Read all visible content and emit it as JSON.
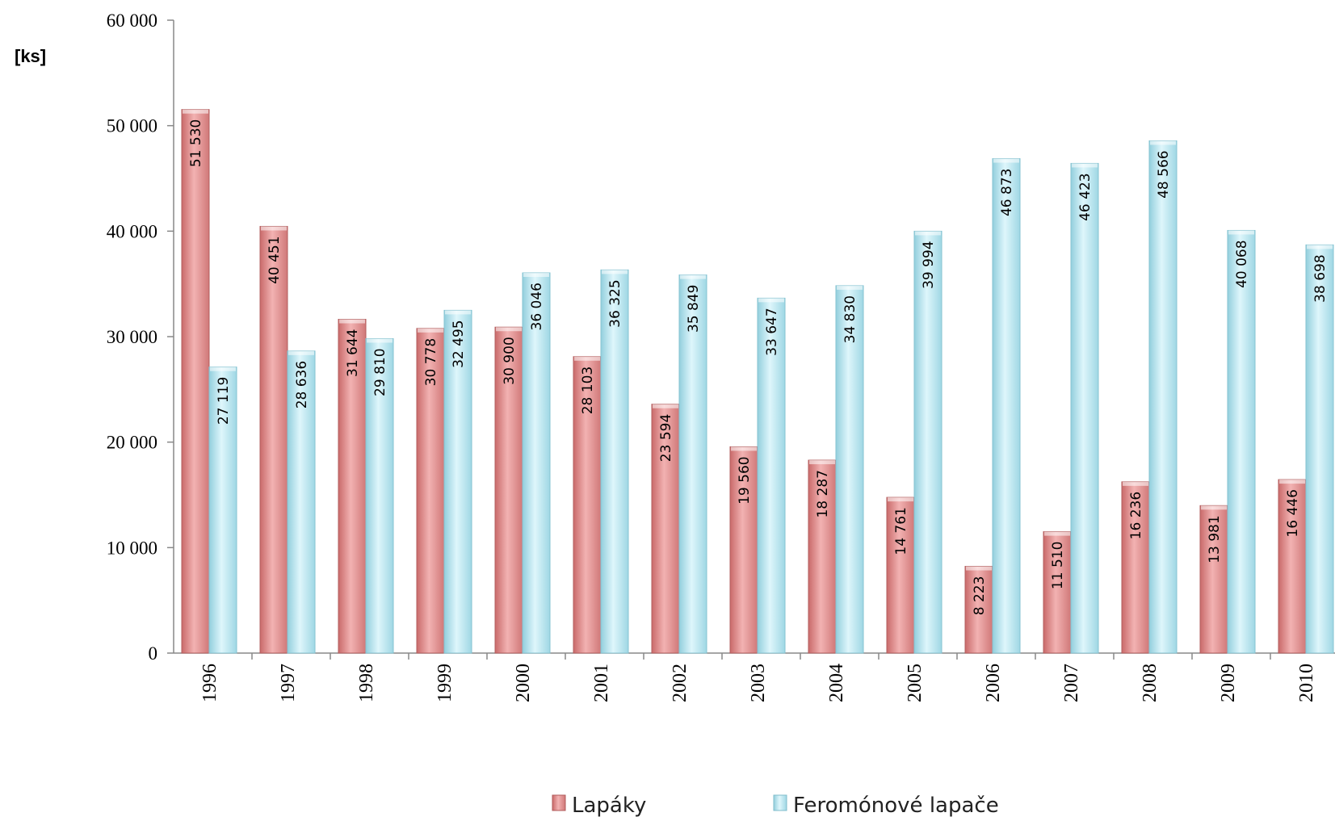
{
  "chart_data": {
    "type": "bar",
    "title": "",
    "xlabel": "",
    "ylabel": "[ks]",
    "ylim": [
      0,
      60000
    ],
    "yticks": [
      0,
      10000,
      20000,
      30000,
      40000,
      50000,
      60000
    ],
    "ytick_labels": [
      "0",
      "10 000",
      "20 000",
      "30 000",
      "40 000",
      "50 000",
      "60 000"
    ],
    "grid": false,
    "legend_position": "bottom",
    "categories": [
      "1996",
      "1997",
      "1998",
      "1999",
      "2000",
      "2001",
      "2002",
      "2003",
      "2004",
      "2005",
      "2006",
      "2007",
      "2008",
      "2009",
      "2010"
    ],
    "series": [
      {
        "name": "Lapáky",
        "color": "#e59a9a",
        "values": [
          51530,
          40451,
          31644,
          30778,
          30900,
          28103,
          23594,
          19560,
          18287,
          14761,
          8223,
          11510,
          16236,
          13981,
          16446
        ],
        "labels": [
          "51 530",
          "40 451",
          "31 644",
          "30 778",
          "30 900",
          "28 103",
          "23 594",
          "19 560",
          "18 287",
          "14 761",
          "8 223",
          "11 510",
          "16 236",
          "13 981",
          "16 446"
        ]
      },
      {
        "name": "Feromónové lapače",
        "color": "#b8e6f0",
        "values": [
          27119,
          28636,
          29810,
          32495,
          36046,
          36325,
          35849,
          33647,
          34830,
          39994,
          46873,
          46423,
          48566,
          40068,
          38698
        ],
        "labels": [
          "27 119",
          "28 636",
          "29 810",
          "32 495",
          "36 046",
          "36 325",
          "35 849",
          "33 647",
          "34 830",
          "39 994",
          "46 873",
          "46 423",
          "48 566",
          "40 068",
          "38 698"
        ]
      }
    ]
  }
}
